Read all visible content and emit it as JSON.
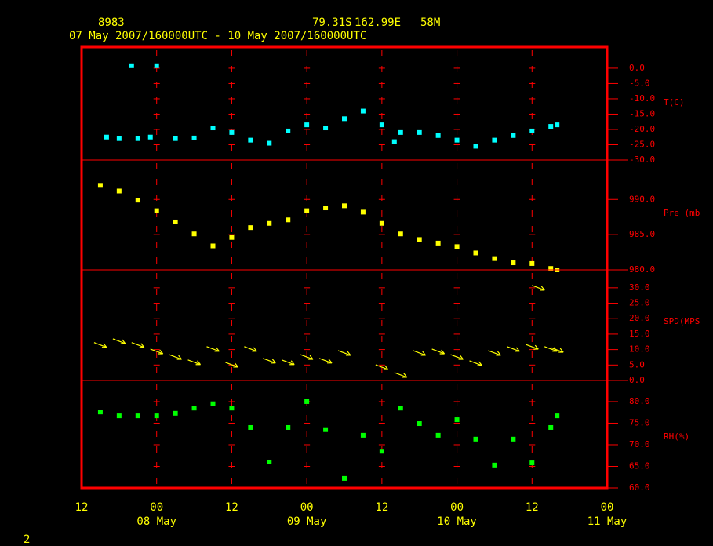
{
  "header": {
    "station": "8983",
    "latitude": "79.31S",
    "longitude": "162.99E",
    "elevation": "58M",
    "period": "07 May 2007/160000UTC - 10 May 2007/160000UTC"
  },
  "time_axis": {
    "xlim": [
      "2007-05-07T12:00:00Z",
      "2007-05-11T00:00:00Z"
    ],
    "xticks": [
      {
        "value": "2007-05-07T12:00:00Z",
        "label": "12"
      },
      {
        "value": "2007-05-08T00:00:00Z",
        "label": "00"
      },
      {
        "value": "2007-05-08T12:00:00Z",
        "label": "12"
      },
      {
        "value": "2007-05-09T00:00:00Z",
        "label": "00"
      },
      {
        "value": "2007-05-09T12:00:00Z",
        "label": "12"
      },
      {
        "value": "2007-05-10T00:00:00Z",
        "label": "00"
      },
      {
        "value": "2007-05-10T12:00:00Z",
        "label": "12"
      },
      {
        "value": "2007-05-11T00:00:00Z",
        "label": "00"
      }
    ],
    "date_labels": [
      {
        "value": "2007-05-08T00:00:00Z",
        "label": "08 May"
      },
      {
        "value": "2007-05-09T00:00:00Z",
        "label": "09 May"
      },
      {
        "value": "2007-05-10T00:00:00Z",
        "label": "10 May"
      },
      {
        "value": "2007-05-11T00:00:00Z",
        "label": "11 May"
      }
    ],
    "grid": true
  },
  "chart_data": [
    {
      "type": "scatter",
      "ylabel": "T(C)",
      "color": "#00ffff",
      "ylim": [
        -30,
        6.9
      ],
      "yticks": [
        {
          "value": 0,
          "label": "0.0"
        },
        {
          "value": -5,
          "label": "-5.0"
        },
        {
          "value": -10,
          "label": "-10.0"
        },
        {
          "value": -15,
          "label": "-15.0"
        },
        {
          "value": -20,
          "label": "-20.0"
        },
        {
          "value": -25,
          "label": "-25.0"
        },
        {
          "value": -30,
          "label": "-30.0"
        }
      ],
      "x": [
        "2007-05-07T16:00:00Z",
        "2007-05-07T18:00:00Z",
        "2007-05-07T20:00:00Z",
        "2007-05-07T21:00:00Z",
        "2007-05-07T23:00:00Z",
        "2007-05-08T00:00:00Z",
        "2007-05-08T03:00:00Z",
        "2007-05-08T06:00:00Z",
        "2007-05-08T09:00:00Z",
        "2007-05-08T12:00:00Z",
        "2007-05-08T15:00:00Z",
        "2007-05-08T18:00:00Z",
        "2007-05-08T21:00:00Z",
        "2007-05-09T00:00:00Z",
        "2007-05-09T03:00:00Z",
        "2007-05-09T06:00:00Z",
        "2007-05-09T09:00:00Z",
        "2007-05-09T12:00:00Z",
        "2007-05-09T14:00:00Z",
        "2007-05-09T15:00:00Z",
        "2007-05-09T18:00:00Z",
        "2007-05-09T21:00:00Z",
        "2007-05-10T00:00:00Z",
        "2007-05-10T03:00:00Z",
        "2007-05-10T06:00:00Z",
        "2007-05-10T09:00:00Z",
        "2007-05-10T12:00:00Z",
        "2007-05-10T15:00:00Z",
        "2007-05-10T16:00:00Z"
      ],
      "values": [
        -22.5,
        -23,
        0.8,
        -23,
        -22.5,
        0.8,
        -23,
        -22.8,
        -19.5,
        -21,
        -23.5,
        -24.5,
        -20.5,
        -18.5,
        -19.5,
        -16.5,
        -14,
        -18.5,
        -24,
        -21,
        -21,
        -22,
        -23.5,
        -25.5,
        -23.5,
        -22,
        -20.5,
        -19,
        -18.5
      ]
    },
    {
      "type": "scatter",
      "ylabel": "Pre (mb",
      "color": "#ffff00",
      "ylim": [
        980,
        995.6
      ],
      "yticks": [
        {
          "value": 990,
          "label": "990.0"
        },
        {
          "value": 985,
          "label": "985.0"
        },
        {
          "value": 980,
          "label": "980.0"
        }
      ],
      "x": [
        "2007-05-07T15:00:00Z",
        "2007-05-07T18:00:00Z",
        "2007-05-07T21:00:00Z",
        "2007-05-08T00:00:00Z",
        "2007-05-08T03:00:00Z",
        "2007-05-08T06:00:00Z",
        "2007-05-08T09:00:00Z",
        "2007-05-08T12:00:00Z",
        "2007-05-08T15:00:00Z",
        "2007-05-08T18:00:00Z",
        "2007-05-08T21:00:00Z",
        "2007-05-09T00:00:00Z",
        "2007-05-09T03:00:00Z",
        "2007-05-09T06:00:00Z",
        "2007-05-09T09:00:00Z",
        "2007-05-09T12:00:00Z",
        "2007-05-09T15:00:00Z",
        "2007-05-09T18:00:00Z",
        "2007-05-09T21:00:00Z",
        "2007-05-10T00:00:00Z",
        "2007-05-10T03:00:00Z",
        "2007-05-10T06:00:00Z",
        "2007-05-10T09:00:00Z",
        "2007-05-10T12:00:00Z",
        "2007-05-10T15:00:00Z",
        "2007-05-10T16:00:00Z"
      ],
      "values": [
        992.0,
        991.2,
        989.9,
        988.4,
        986.8,
        985.1,
        983.4,
        984.6,
        986.0,
        986.6,
        987.1,
        988.4,
        988.8,
        989.1,
        988.2,
        986.6,
        985.1,
        984.3,
        983.8,
        983.3,
        982.4,
        981.6,
        981.0,
        980.9,
        980.2,
        980.0
      ]
    },
    {
      "type": "vector",
      "ylabel": "SPD(MPS",
      "color": "#ffff00",
      "ylim": [
        0,
        35.8
      ],
      "yticks": [
        {
          "value": 30,
          "label": "30.0"
        },
        {
          "value": 25,
          "label": "25.0"
        },
        {
          "value": 20,
          "label": "20.0"
        },
        {
          "value": 15,
          "label": "15.0"
        },
        {
          "value": 10,
          "label": "10.0"
        },
        {
          "value": 5,
          "label": "5.0"
        },
        {
          "value": 0,
          "label": "0.0"
        }
      ],
      "x": [
        "2007-05-07T15:00:00Z",
        "2007-05-07T18:00:00Z",
        "2007-05-07T21:00:00Z",
        "2007-05-08T00:00:00Z",
        "2007-05-08T03:00:00Z",
        "2007-05-08T06:00:00Z",
        "2007-05-08T09:00:00Z",
        "2007-05-08T12:00:00Z",
        "2007-05-08T15:00:00Z",
        "2007-05-08T18:00:00Z",
        "2007-05-08T21:00:00Z",
        "2007-05-09T00:00:00Z",
        "2007-05-09T03:00:00Z",
        "2007-05-09T06:00:00Z",
        "2007-05-09T12:00:00Z",
        "2007-05-09T15:00:00Z",
        "2007-05-09T18:00:00Z",
        "2007-05-09T21:00:00Z",
        "2007-05-10T00:00:00Z",
        "2007-05-10T03:00:00Z",
        "2007-05-10T06:00:00Z",
        "2007-05-10T09:00:00Z",
        "2007-05-10T12:00:00Z",
        "2007-05-10T13:00:00Z",
        "2007-05-10T15:00:00Z",
        "2007-05-10T16:00:00Z"
      ],
      "values": [
        11.5,
        12.7,
        11.5,
        9.4,
        7.6,
        5.9,
        10.2,
        5.1,
        10.2,
        6.4,
        5.9,
        7.6,
        6.4,
        8.9,
        4.3,
        1.8,
        8.9,
        9.4,
        7.6,
        5.6,
        8.9,
        10.2,
        10.9,
        30.0,
        10.2,
        9.9
      ]
    },
    {
      "type": "scatter",
      "ylabel": "RH(%)",
      "color": "#00ff00",
      "ylim": [
        60,
        84.9
      ],
      "yticks": [
        {
          "value": 80,
          "label": "80.0"
        },
        {
          "value": 75,
          "label": "75.0"
        },
        {
          "value": 70,
          "label": "70.0"
        },
        {
          "value": 65,
          "label": "65.0"
        },
        {
          "value": 60,
          "label": "60.0"
        }
      ],
      "x": [
        "2007-05-07T15:00:00Z",
        "2007-05-07T18:00:00Z",
        "2007-05-07T21:00:00Z",
        "2007-05-08T00:00:00Z",
        "2007-05-08T03:00:00Z",
        "2007-05-08T06:00:00Z",
        "2007-05-08T09:00:00Z",
        "2007-05-08T12:00:00Z",
        "2007-05-08T15:00:00Z",
        "2007-05-08T18:00:00Z",
        "2007-05-08T21:00:00Z",
        "2007-05-09T00:00:00Z",
        "2007-05-09T03:00:00Z",
        "2007-05-09T06:00:00Z",
        "2007-05-09T09:00:00Z",
        "2007-05-09T12:00:00Z",
        "2007-05-09T15:00:00Z",
        "2007-05-09T18:00:00Z",
        "2007-05-09T21:00:00Z",
        "2007-05-10T00:00:00Z",
        "2007-05-10T03:00:00Z",
        "2007-05-10T06:00:00Z",
        "2007-05-10T09:00:00Z",
        "2007-05-10T12:00:00Z",
        "2007-05-10T15:00:00Z",
        "2007-05-10T16:00:00Z"
      ],
      "values": [
        77.6,
        76.7,
        76.7,
        76.7,
        77.3,
        78.5,
        79.5,
        78.5,
        74.0,
        66,
        74.0,
        80.0,
        73.5,
        62.2,
        72.2,
        68.5,
        78.5,
        74.9,
        72.2,
        75.8,
        71.3,
        65.3,
        71.3,
        65.8,
        74.0,
        76.7
      ]
    }
  ],
  "footer": "2"
}
